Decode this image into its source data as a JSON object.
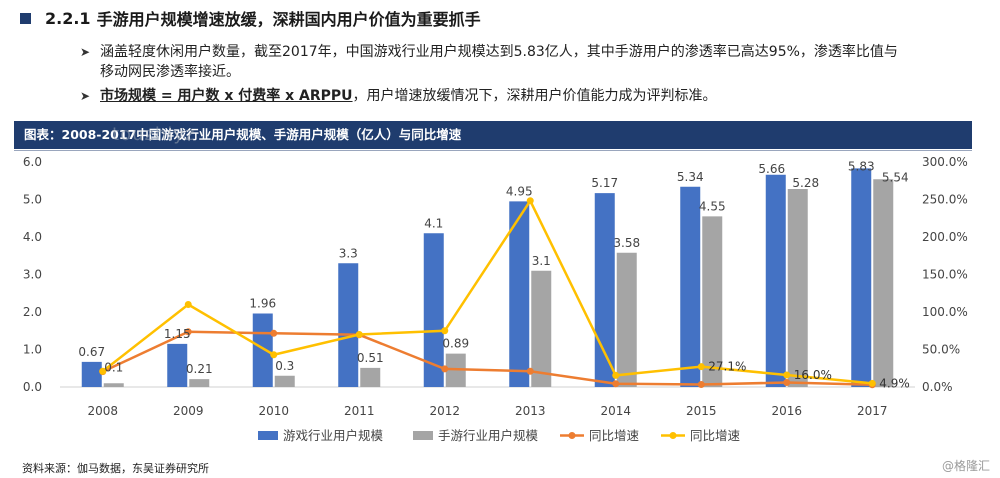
{
  "heading": {
    "number": "2.2.1",
    "title": "手游用户规模增速放缓，深耕国内用户价值为重要抓手"
  },
  "bullets": [
    {
      "text": "涵盖轻度休闲用户数量，截至2017年，中国游戏行业用户规模达到5.83亿人，其中手游用户的渗透率已高达95%，渗透率比值与移动网民渗透率接近。"
    },
    {
      "bold": "市场规模 = 用户数 x 付费率 x ARPPU",
      "text": "，用户增速放缓情况下，深耕用户价值能力成为评判标准。"
    }
  ],
  "banner": "图表：2008-2017中国游戏行业用户规模、手游用户规模（亿人）与同比增速",
  "watermark": "touzhiyz",
  "source": "资料来源：伽马数据，东吴证券研究所",
  "logo": "@格隆汇",
  "colors": {
    "blue": "#4472C4",
    "gray": "#A5A5A5",
    "orange": "#ED7D31",
    "yellow": "#FFC000",
    "banner": "#1f3c6e"
  },
  "chart_data": {
    "type": "bar",
    "categories": [
      "2008",
      "2009",
      "2010",
      "2011",
      "2012",
      "2013",
      "2014",
      "2015",
      "2016",
      "2017"
    ],
    "series": [
      {
        "name": "游戏行业用户规模",
        "type": "bar",
        "axis": "left",
        "values": [
          0.67,
          1.15,
          1.96,
          3.3,
          4.1,
          4.95,
          5.17,
          5.34,
          5.66,
          5.83
        ],
        "labels": [
          "0.67",
          "1.15",
          "1.96",
          "3.3",
          "4.1",
          "4.95",
          "5.17",
          "5.34",
          "5.66",
          "5.83"
        ]
      },
      {
        "name": "手游行业用户规模",
        "type": "bar",
        "axis": "left",
        "values": [
          0.1,
          0.21,
          0.3,
          0.51,
          0.89,
          3.1,
          3.58,
          4.55,
          5.28,
          5.54
        ],
        "labels": [
          "0.1",
          "0.21",
          "0.3",
          "0.51",
          "0.89",
          "3.1",
          "3.58",
          "4.55",
          "5.28",
          "5.54"
        ]
      },
      {
        "name": "同比增速",
        "type": "line",
        "axis": "right",
        "color": "orange",
        "values": [
          20.5,
          73.6,
          71.6,
          69.6,
          24.2,
          21.0,
          4.4,
          3.3,
          6.0,
          3.0
        ],
        "labels": [
          "",
          "",
          "",
          "",
          "",
          "",
          "",
          "",
          "",
          ""
        ]
      },
      {
        "name": "同比增速",
        "type": "line",
        "axis": "right",
        "color": "yellow",
        "values": [
          21.0,
          110.0,
          43.0,
          70.0,
          75.0,
          248.3,
          15.5,
          27.1,
          16.0,
          4.9
        ],
        "labels": [
          "",
          "",
          "",
          "",
          "",
          "",
          "",
          "27.1%",
          "16.0%",
          "4.9%"
        ]
      }
    ],
    "y_left": {
      "min": 0,
      "max": 6,
      "ticks": [
        "0.0",
        "1.0",
        "2.0",
        "3.0",
        "4.0",
        "5.0",
        "6.0"
      ]
    },
    "y_right": {
      "min": 0,
      "max": 300,
      "ticks": [
        "0.0%",
        "50.0%",
        "100.0%",
        "150.0%",
        "200.0%",
        "250.0%",
        "300.0%"
      ]
    },
    "grid": false,
    "legend": "bottom"
  }
}
